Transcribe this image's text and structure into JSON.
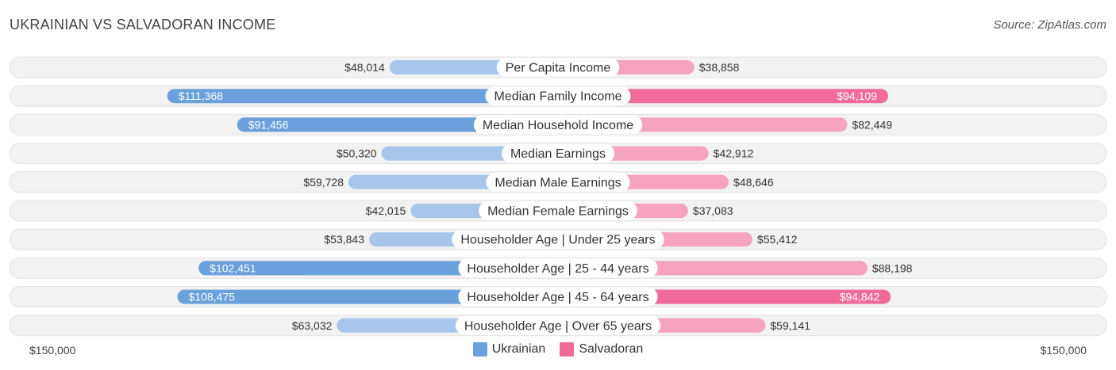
{
  "title": "UKRAINIAN VS SALVADORAN INCOME",
  "source": "Source: ZipAtlas.com",
  "colors": {
    "ukrainian_strong": "#6aa0dc",
    "ukrainian_light": "#a7c6ea",
    "salvadoran_strong": "#f06b99",
    "salvadoran_light": "#f5a3bf",
    "row_bg": "#f2f2f2"
  },
  "axis": {
    "left_label": "$150,000",
    "right_label": "$150,000"
  },
  "chart_data": {
    "type": "bar",
    "title": "UKRAINIAN VS SALVADORAN INCOME",
    "categories": [
      "Per Capita Income",
      "Median Family Income",
      "Median Household Income",
      "Median Earnings",
      "Median Male Earnings",
      "Median Female Earnings",
      "Householder Age | Under 25 years",
      "Householder Age | 25 - 44 years",
      "Householder Age | 45 - 64 years",
      "Householder Age | Over 65 years"
    ],
    "series": [
      {
        "name": "Ukrainian",
        "values": [
          48014,
          111368,
          91456,
          50320,
          59728,
          42015,
          53843,
          102451,
          108475,
          63032
        ],
        "labels": [
          "$48,014",
          "$111,368",
          "$91,456",
          "$50,320",
          "$59,728",
          "$42,015",
          "$53,843",
          "$102,451",
          "$108,475",
          "$63,032"
        ]
      },
      {
        "name": "Salvadoran",
        "values": [
          38858,
          94109,
          82449,
          42912,
          48646,
          37083,
          55412,
          88198,
          94842,
          59141
        ],
        "labels": [
          "$38,858",
          "$94,109",
          "$82,449",
          "$42,912",
          "$48,646",
          "$37,083",
          "$55,412",
          "$88,198",
          "$94,842",
          "$59,141"
        ]
      }
    ],
    "xlim": [
      -150000,
      150000
    ],
    "legend": "bottom-center"
  }
}
